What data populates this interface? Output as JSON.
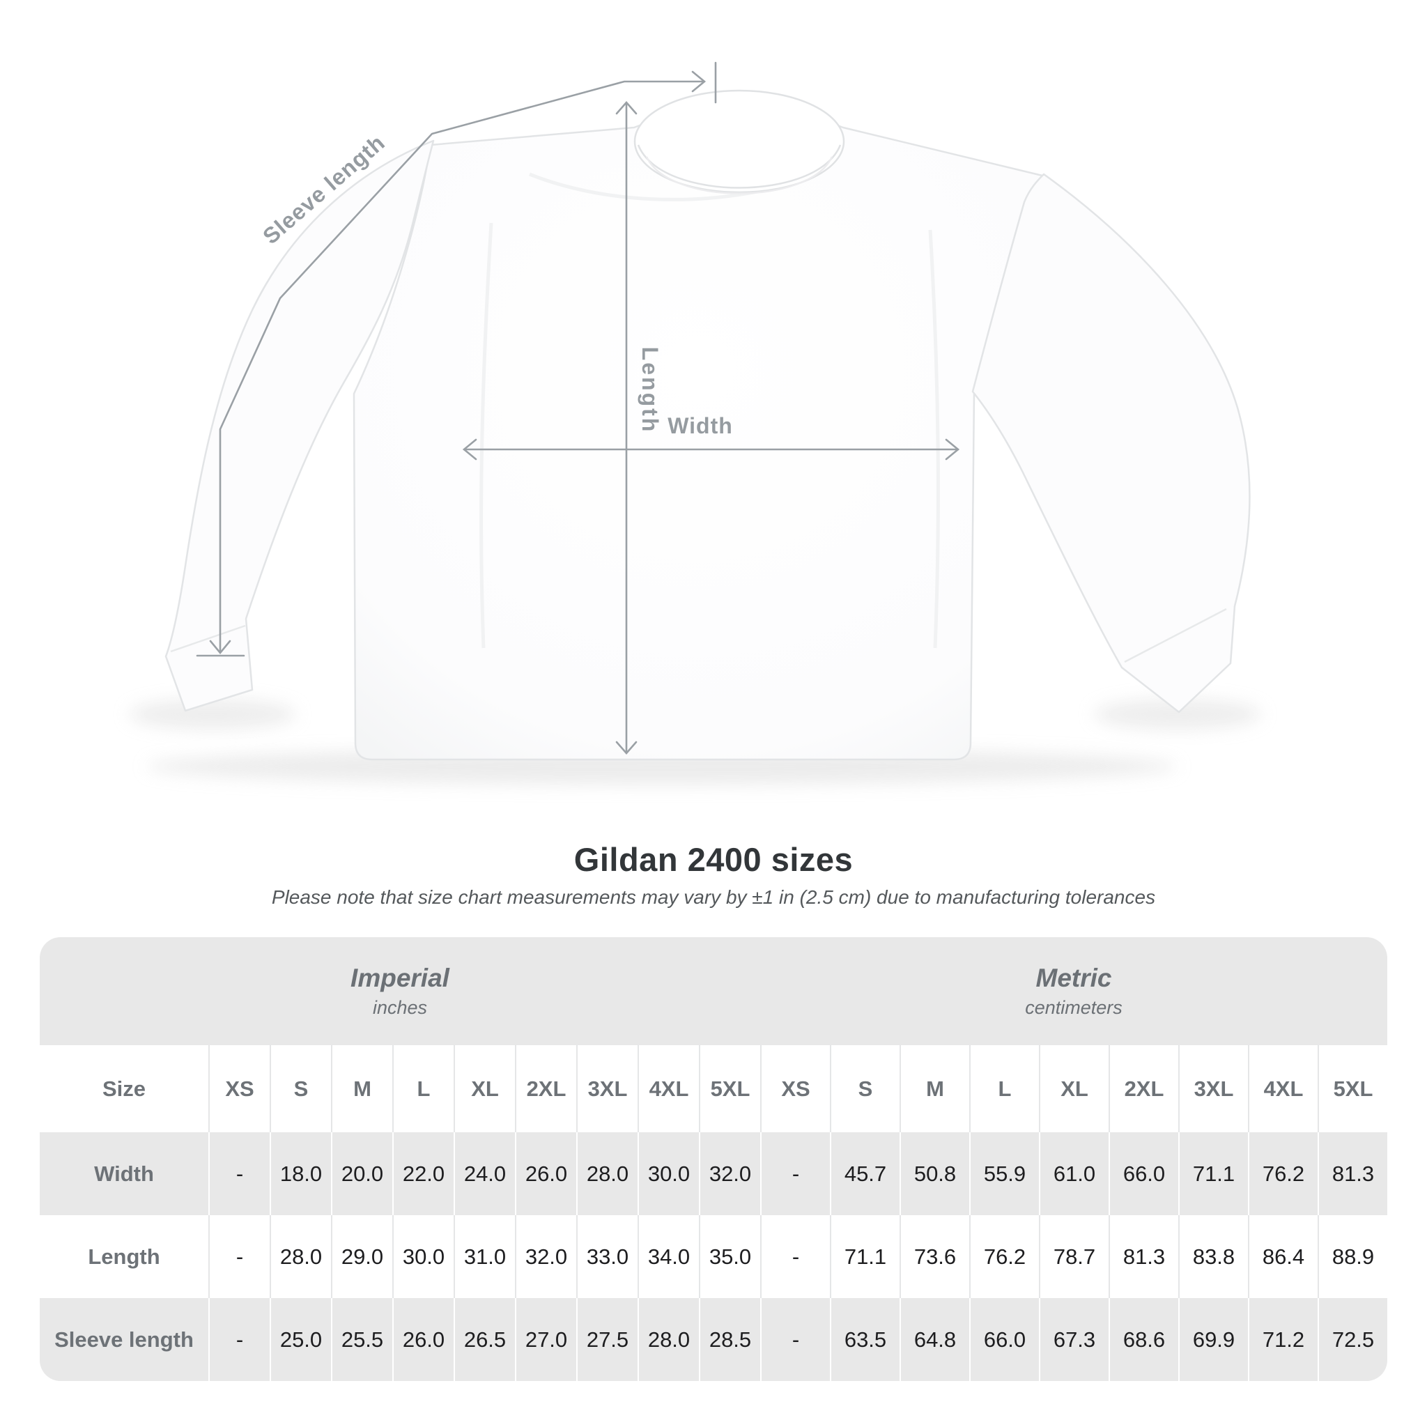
{
  "title": "Gildan 2400 sizes",
  "subtitle": "Please note that size chart measurements may vary by ±1 in (2.5 cm) due to manufacturing tolerances",
  "diagram": {
    "product": "white long sleeve t-shirt",
    "labels": {
      "sleeve_length": "Sleeve length",
      "length": "Length",
      "width": "Width"
    },
    "line_color": "#9aa0a5",
    "label_color": "#959ba0"
  },
  "table": {
    "size_header": "Size",
    "groups": [
      {
        "name": "Imperial",
        "unit": "inches"
      },
      {
        "name": "Metric",
        "unit": "centimeters"
      }
    ],
    "size_columns": [
      "XS",
      "S",
      "M",
      "L",
      "XL",
      "2XL",
      "3XL",
      "4XL",
      "5XL"
    ],
    "rows": [
      {
        "label": "Width",
        "imperial": [
          "-",
          "18.0",
          "20.0",
          "22.0",
          "24.0",
          "26.0",
          "28.0",
          "30.0",
          "32.0"
        ],
        "metric": [
          "-",
          "45.7",
          "50.8",
          "55.9",
          "61.0",
          "66.0",
          "71.1",
          "76.2",
          "81.3"
        ]
      },
      {
        "label": "Length",
        "imperial": [
          "-",
          "28.0",
          "29.0",
          "30.0",
          "31.0",
          "32.0",
          "33.0",
          "34.0",
          "35.0"
        ],
        "metric": [
          "-",
          "71.1",
          "73.6",
          "76.2",
          "78.7",
          "81.3",
          "83.8",
          "86.4",
          "88.9"
        ]
      },
      {
        "label": "Sleeve length",
        "imperial": [
          "-",
          "25.0",
          "25.5",
          "26.0",
          "26.5",
          "27.0",
          "27.5",
          "28.0",
          "28.5"
        ],
        "metric": [
          "-",
          "63.5",
          "64.8",
          "66.0",
          "67.3",
          "68.6",
          "69.9",
          "71.2",
          "72.5"
        ]
      }
    ]
  },
  "chart_data": {
    "type": "table",
    "title": "Gildan 2400 sizes",
    "note": "Please note that size chart measurements may vary by ±1 in (2.5 cm) due to manufacturing tolerances",
    "column_groups": [
      "Imperial (inches)",
      "Metric (centimeters)"
    ],
    "sizes": [
      "XS",
      "S",
      "M",
      "L",
      "XL",
      "2XL",
      "3XL",
      "4XL",
      "5XL"
    ],
    "rows": [
      {
        "label": "Width",
        "imperial": [
          null,
          18.0,
          20.0,
          22.0,
          24.0,
          26.0,
          28.0,
          30.0,
          32.0
        ],
        "metric": [
          null,
          45.7,
          50.8,
          55.9,
          61.0,
          66.0,
          71.1,
          76.2,
          81.3
        ]
      },
      {
        "label": "Length",
        "imperial": [
          null,
          28.0,
          29.0,
          30.0,
          31.0,
          32.0,
          33.0,
          34.0,
          35.0
        ],
        "metric": [
          null,
          71.1,
          73.6,
          76.2,
          78.7,
          81.3,
          83.8,
          86.4,
          88.9
        ]
      },
      {
        "label": "Sleeve length",
        "imperial": [
          null,
          25.0,
          25.5,
          26.0,
          26.5,
          27.0,
          27.5,
          28.0,
          28.5
        ],
        "metric": [
          null,
          63.5,
          64.8,
          66.0,
          67.3,
          68.6,
          69.9,
          71.2,
          72.5
        ]
      }
    ]
  }
}
